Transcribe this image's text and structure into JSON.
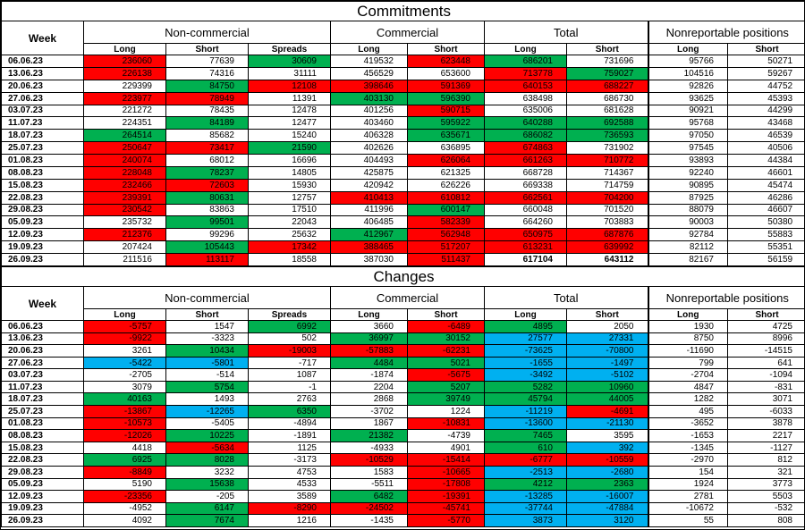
{
  "colors": {
    "r": "#FF0000",
    "g": "#00B050",
    "b": "#00B0F0"
  },
  "sections": [
    {
      "title": "Commitments",
      "week_header": "Week",
      "groups": [
        {
          "label": "Non-commercial",
          "cols": [
            "Long",
            "Short",
            "Spreads"
          ]
        },
        {
          "label": "Commercial",
          "cols": [
            "Long",
            "Short"
          ]
        },
        {
          "label": "Total",
          "cols": [
            "Long",
            "Short"
          ]
        },
        {
          "label": "Nonreportable positions",
          "cols": [
            "Long",
            "Short"
          ]
        }
      ],
      "rows": [
        {
          "week": "06.06.23",
          "values": [
            "236060",
            "77639",
            "30609",
            "419532",
            "623448",
            "686201",
            "731696",
            "95766",
            "50271"
          ],
          "bg": [
            "r",
            "",
            "g",
            "",
            "r",
            "g",
            "",
            "",
            ""
          ]
        },
        {
          "week": "13.06.23",
          "values": [
            "226138",
            "74316",
            "31111",
            "456529",
            "653600",
            "713778",
            "759027",
            "104516",
            "59267"
          ],
          "bg": [
            "r",
            "",
            "",
            "",
            "",
            "r",
            "g",
            "",
            ""
          ]
        },
        {
          "week": "20.06.23",
          "values": [
            "229399",
            "84750",
            "12108",
            "398646",
            "591369",
            "640153",
            "688227",
            "92826",
            "44752"
          ],
          "bg": [
            "",
            "g",
            "r",
            "r",
            "r",
            "r",
            "r",
            "",
            ""
          ]
        },
        {
          "week": "27.06.23",
          "values": [
            "223977",
            "78949",
            "11391",
            "403130",
            "596390",
            "638498",
            "686730",
            "93625",
            "45393"
          ],
          "bg": [
            "r",
            "r",
            "",
            "g",
            "g",
            "",
            "",
            "",
            ""
          ]
        },
        {
          "week": "03.07.23",
          "values": [
            "221272",
            "78435",
            "12478",
            "401256",
            "590715",
            "635006",
            "681628",
            "90921",
            "44299"
          ],
          "bg": [
            "",
            "",
            "",
            "",
            "r",
            "",
            "",
            "",
            ""
          ]
        },
        {
          "week": "11.07.23",
          "values": [
            "224351",
            "84189",
            "12477",
            "403460",
            "595922",
            "640288",
            "692588",
            "95768",
            "43468"
          ],
          "bg": [
            "",
            "g",
            "",
            "",
            "g",
            "g",
            "g",
            "",
            ""
          ]
        },
        {
          "week": "18.07.23",
          "values": [
            "264514",
            "85682",
            "15240",
            "406328",
            "635671",
            "686082",
            "736593",
            "97050",
            "46539"
          ],
          "bg": [
            "g",
            "",
            "",
            "",
            "g",
            "g",
            "g",
            "",
            ""
          ]
        },
        {
          "week": "25.07.23",
          "values": [
            "250647",
            "73417",
            "21590",
            "402626",
            "636895",
            "674863",
            "731902",
            "97545",
            "40506"
          ],
          "bg": [
            "r",
            "r",
            "g",
            "",
            "",
            "r",
            "",
            "",
            ""
          ]
        },
        {
          "week": "01.08.23",
          "values": [
            "240074",
            "68012",
            "16696",
            "404493",
            "626064",
            "661263",
            "710772",
            "93893",
            "44384"
          ],
          "bg": [
            "r",
            "",
            "",
            "",
            "r",
            "r",
            "r",
            "",
            ""
          ]
        },
        {
          "week": "08.08.23",
          "values": [
            "228048",
            "78237",
            "14805",
            "425875",
            "621325",
            "668728",
            "714367",
            "92240",
            "46601"
          ],
          "bg": [
            "r",
            "g",
            "",
            "",
            "",
            "",
            "",
            "",
            ""
          ]
        },
        {
          "week": "15.08.23",
          "values": [
            "232466",
            "72603",
            "15930",
            "420942",
            "626226",
            "669338",
            "714759",
            "90895",
            "45474"
          ],
          "bg": [
            "r",
            "r",
            "",
            "",
            "",
            "",
            "",
            "",
            ""
          ]
        },
        {
          "week": "22.08.23",
          "values": [
            "239391",
            "80631",
            "12757",
            "410413",
            "610812",
            "662561",
            "704200",
            "87925",
            "46286"
          ],
          "bg": [
            "r",
            "g",
            "",
            "r",
            "r",
            "r",
            "r",
            "",
            ""
          ]
        },
        {
          "week": "29.08.23",
          "values": [
            "230542",
            "83863",
            "17510",
            "411996",
            "600147",
            "660048",
            "701520",
            "88079",
            "46607"
          ],
          "bg": [
            "r",
            "",
            "",
            "",
            "g",
            "",
            "",
            "",
            ""
          ]
        },
        {
          "week": "05.09.23",
          "values": [
            "235732",
            "99501",
            "22043",
            "406485",
            "582339",
            "664260",
            "703883",
            "90003",
            "50380"
          ],
          "bg": [
            "",
            "g",
            "",
            "",
            "r",
            "",
            "",
            "",
            ""
          ]
        },
        {
          "week": "12.09.23",
          "values": [
            "212376",
            "99296",
            "25632",
            "412967",
            "562948",
            "650975",
            "687876",
            "92784",
            "55883"
          ],
          "bg": [
            "r",
            "",
            "",
            "g",
            "r",
            "r",
            "r",
            "",
            ""
          ]
        },
        {
          "week": "19.09.23",
          "values": [
            "207424",
            "105443",
            "17342",
            "388465",
            "517207",
            "613231",
            "639992",
            "82112",
            "55351"
          ],
          "bg": [
            "",
            "g",
            "r",
            "r",
            "r",
            "r",
            "r",
            "",
            ""
          ]
        },
        {
          "week": "26.09.23",
          "values": [
            "211516",
            "113117",
            "18558",
            "387030",
            "511437",
            "617104",
            "643112",
            "82167",
            "56159"
          ],
          "bg": [
            "",
            "r",
            "",
            "",
            "r",
            "",
            "",
            "",
            ""
          ],
          "bold": [
            5,
            6
          ]
        }
      ]
    },
    {
      "title": "Changes",
      "week_header": "Week",
      "groups": [
        {
          "label": "Non-commercial",
          "cols": [
            "Long",
            "Short",
            "Spreads"
          ]
        },
        {
          "label": "Commercial",
          "cols": [
            "Long",
            "Short"
          ]
        },
        {
          "label": "Total",
          "cols": [
            "Long",
            "Short"
          ]
        },
        {
          "label": "Nonreportable positions",
          "cols": [
            "Long",
            "Short"
          ]
        }
      ],
      "rows": [
        {
          "week": "06.06.23",
          "values": [
            "-5757",
            "1547",
            "6992",
            "3660",
            "-6489",
            "4895",
            "2050",
            "1930",
            "4725"
          ],
          "bg": [
            "r",
            "",
            "g",
            "",
            "r",
            "g",
            "",
            "",
            ""
          ]
        },
        {
          "week": "13.06.23",
          "values": [
            "-9922",
            "-3323",
            "502",
            "36997",
            "30152",
            "27577",
            "27331",
            "8750",
            "8996"
          ],
          "bg": [
            "r",
            "",
            "",
            "g",
            "g",
            "b",
            "b",
            "",
            ""
          ]
        },
        {
          "week": "20.06.23",
          "values": [
            "3261",
            "10434",
            "-19003",
            "-57883",
            "-62231",
            "-73625",
            "-70800",
            "-11690",
            "-14515"
          ],
          "bg": [
            "",
            "g",
            "r",
            "r",
            "r",
            "b",
            "b",
            "",
            ""
          ]
        },
        {
          "week": "27.06.23",
          "values": [
            "-5422",
            "-5801",
            "-717",
            "4484",
            "5021",
            "-1655",
            "-1497",
            "799",
            "641"
          ],
          "bg": [
            "b",
            "b",
            "",
            "g",
            "g",
            "b",
            "b",
            "",
            ""
          ]
        },
        {
          "week": "03.07.23",
          "values": [
            "-2705",
            "-514",
            "1087",
            "-1874",
            "-5675",
            "-3492",
            "-5102",
            "-2704",
            "-1094"
          ],
          "bg": [
            "",
            "",
            "",
            "",
            "r",
            "b",
            "b",
            "",
            ""
          ]
        },
        {
          "week": "11.07.23",
          "values": [
            "3079",
            "5754",
            "-1",
            "2204",
            "5207",
            "5282",
            "10960",
            "4847",
            "-831"
          ],
          "bg": [
            "",
            "g",
            "",
            "",
            "g",
            "g",
            "g",
            "",
            ""
          ]
        },
        {
          "week": "18.07.23",
          "values": [
            "40163",
            "1493",
            "2763",
            "2868",
            "39749",
            "45794",
            "44005",
            "1282",
            "3071"
          ],
          "bg": [
            "g",
            "",
            "",
            "",
            "g",
            "g",
            "g",
            "",
            ""
          ]
        },
        {
          "week": "25.07.23",
          "values": [
            "-13867",
            "-12265",
            "6350",
            "-3702",
            "1224",
            "-11219",
            "-4691",
            "495",
            "-6033"
          ],
          "bg": [
            "r",
            "b",
            "g",
            "",
            "",
            "b",
            "r",
            "",
            ""
          ]
        },
        {
          "week": "01.08.23",
          "values": [
            "-10573",
            "-5405",
            "-4894",
            "1867",
            "-10831",
            "-13600",
            "-21130",
            "-3652",
            "3878"
          ],
          "bg": [
            "r",
            "",
            "",
            "",
            "r",
            "b",
            "b",
            "",
            ""
          ]
        },
        {
          "week": "08.08.23",
          "values": [
            "-12026",
            "10225",
            "-1891",
            "21382",
            "-4739",
            "7465",
            "3595",
            "-1653",
            "2217"
          ],
          "bg": [
            "r",
            "g",
            "",
            "g",
            "",
            "g",
            "",
            "",
            ""
          ]
        },
        {
          "week": "15.08.23",
          "values": [
            "4418",
            "-5634",
            "1125",
            "-4933",
            "4901",
            "610",
            "392",
            "-1345",
            "-1127"
          ],
          "bg": [
            "",
            "r",
            "",
            "",
            "",
            "g",
            "b",
            "",
            ""
          ]
        },
        {
          "week": "22.08.23",
          "values": [
            "6925",
            "8028",
            "-3173",
            "-10529",
            "-15414",
            "-6777",
            "-10559",
            "-2970",
            "812"
          ],
          "bg": [
            "g",
            "g",
            "",
            "r",
            "r",
            "r",
            "r",
            "",
            ""
          ]
        },
        {
          "week": "29.08.23",
          "values": [
            "-8849",
            "3232",
            "4753",
            "1583",
            "-10665",
            "-2513",
            "-2680",
            "154",
            "321"
          ],
          "bg": [
            "r",
            "",
            "",
            "",
            "r",
            "b",
            "b",
            "",
            ""
          ]
        },
        {
          "week": "05.09.23",
          "values": [
            "5190",
            "15638",
            "4533",
            "-5511",
            "-17808",
            "4212",
            "2363",
            "1924",
            "3773"
          ],
          "bg": [
            "",
            "g",
            "",
            "",
            "r",
            "g",
            "g",
            "",
            ""
          ]
        },
        {
          "week": "12.09.23",
          "values": [
            "-23356",
            "-205",
            "3589",
            "6482",
            "-19391",
            "-13285",
            "-16007",
            "2781",
            "5503"
          ],
          "bg": [
            "r",
            "",
            "",
            "g",
            "r",
            "b",
            "b",
            "",
            ""
          ]
        },
        {
          "week": "19.09.23",
          "values": [
            "-4952",
            "6147",
            "-8290",
            "-24502",
            "-45741",
            "-37744",
            "-47884",
            "-10672",
            "-532"
          ],
          "bg": [
            "",
            "g",
            "r",
            "r",
            "r",
            "b",
            "b",
            "",
            ""
          ]
        },
        {
          "week": "26.09.23",
          "values": [
            "4092",
            "7674",
            "1216",
            "-1435",
            "-5770",
            "3873",
            "3120",
            "55",
            "808"
          ],
          "bg": [
            "",
            "g",
            "",
            "",
            "r",
            "b",
            "b",
            "",
            ""
          ]
        }
      ]
    }
  ]
}
